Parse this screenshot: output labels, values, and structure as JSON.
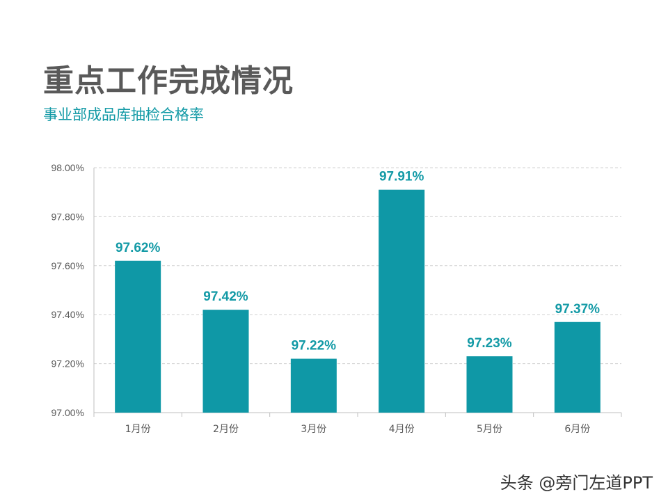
{
  "title": "重点工作完成情况",
  "subtitle": "事业部成品库抽检合格率",
  "watermark": "头条 @旁门左道PPT",
  "colors": {
    "bar": "#0f98a6",
    "label": "#139aa6",
    "title": "#595959",
    "axis_text": "#595959",
    "grid": "#d0d0d0"
  },
  "chart_data": {
    "type": "bar",
    "categories": [
      "1月份",
      "2月份",
      "3月份",
      "4月份",
      "5月份",
      "6月份"
    ],
    "values": [
      97.62,
      97.42,
      97.22,
      97.91,
      97.23,
      97.37
    ],
    "data_labels": [
      "97.62%",
      "97.42%",
      "97.22%",
      "97.91%",
      "97.23%",
      "97.37%"
    ],
    "yticks": [
      97.0,
      97.2,
      97.4,
      97.6,
      97.8,
      98.0
    ],
    "ytick_labels": [
      "97.00%",
      "97.20%",
      "97.40%",
      "97.60%",
      "97.80%",
      "98.00%"
    ],
    "ylim": [
      97.0,
      98.0
    ],
    "grid": true,
    "legend": "none"
  }
}
